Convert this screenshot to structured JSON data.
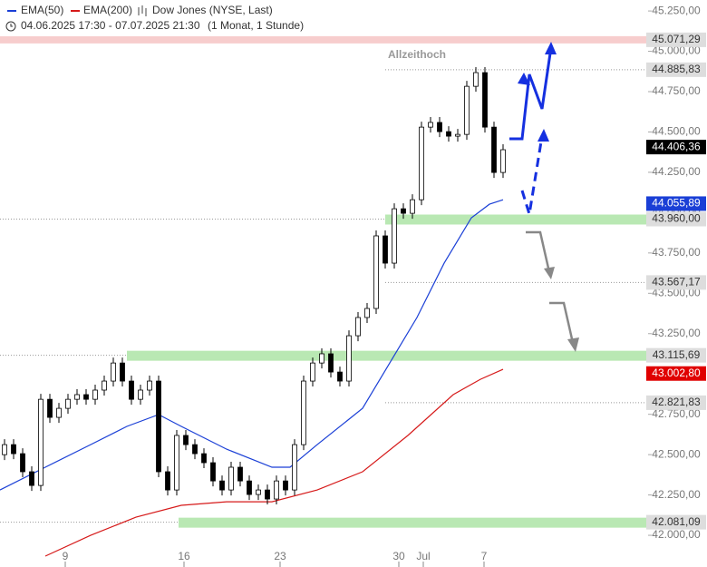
{
  "chart_data": {
    "type": "candlestick",
    "title": "Dow Jones (NYSE, Last)",
    "subtitle": "04.06.2025 17:30 - 07.07.2025 21:30",
    "period": "(1 Monat, 1 Stunde)",
    "annotation": "Allzeithoch",
    "candles": {
      "open": [
        42500,
        42562,
        42506,
        42394,
        42309,
        42843,
        42731,
        42787,
        42843,
        42872,
        42843,
        42900,
        42956,
        43068,
        42956,
        42843,
        42900,
        42956,
        42394,
        42281,
        42619,
        42562,
        42506,
        42450,
        42337,
        42281,
        42422,
        42337,
        42253,
        42281,
        42225,
        42337,
        42281,
        42562,
        42956,
        43068,
        43125,
        43012,
        42956,
        43237,
        43350,
        43406,
        43856,
        43687,
        44024,
        43996,
        44080,
        44530,
        44559,
        44502,
        44474,
        44485,
        44783,
        44868,
        44530,
        44249
      ],
      "close": [
        42562,
        42506,
        42394,
        42309,
        42843,
        42731,
        42787,
        42843,
        42872,
        42843,
        42900,
        42956,
        43068,
        42956,
        42843,
        42900,
        42956,
        42394,
        42281,
        42619,
        42562,
        42506,
        42450,
        42337,
        42281,
        42422,
        42337,
        42253,
        42281,
        42225,
        42337,
        42281,
        42562,
        42956,
        43068,
        43125,
        43012,
        42956,
        43237,
        43350,
        43406,
        43856,
        43687,
        44024,
        43996,
        44080,
        44530,
        44559,
        44502,
        44474,
        44485,
        44783,
        44868,
        44530,
        44249,
        44390
      ]
    },
    "series": [
      {
        "name": "EMA(50)",
        "color": "#1a3fd6",
        "x": [
          -0.5,
          4.5,
          9.5,
          13.5,
          17,
          19.5,
          24.5,
          29.5,
          31.5,
          34.5,
          39.5,
          42.5,
          45.5,
          48.5,
          51.5,
          53.5,
          55
        ],
        "values": [
          42281,
          42422,
          42562,
          42675,
          42748,
          42675,
          42534,
          42422,
          42422,
          42562,
          42787,
          43068,
          43350,
          43687,
          43968,
          44052,
          44080
        ]
      },
      {
        "name": "EMA(200)",
        "color": "#d61a1a",
        "x": [
          4.5,
          9.5,
          14.5,
          19.5,
          24.5,
          29.5,
          34.5,
          39.5,
          44.5,
          49.5,
          52.5,
          55
        ],
        "values": [
          41871,
          42000,
          42112,
          42186,
          42208,
          42208,
          42281,
          42394,
          42619,
          42872,
          42967,
          43029
        ]
      }
    ],
    "levels": [
      {
        "value": 45071.29,
        "label": "45.071,29",
        "kind": "resistance",
        "color": "#f4b8b8"
      },
      {
        "value": 44885.83,
        "label": "44.885,83",
        "kind": "dotted",
        "color": "#d9d9d9"
      },
      {
        "value": 44406.36,
        "label": "44.406,36",
        "kind": "marker",
        "color": "#000000"
      },
      {
        "value": 44055.89,
        "label": "44.055,89",
        "kind": "marker",
        "color": "#1a3fd6"
      },
      {
        "value": 43960.0,
        "label": "43.960,00",
        "kind": "zone",
        "color": "#b9e8b3",
        "from": 42
      },
      {
        "value": 43567.17,
        "label": "43.567,17",
        "kind": "dotted",
        "color": "#d9d9d9"
      },
      {
        "value": 43115.69,
        "label": "43.115,69",
        "kind": "zone",
        "color": "#b9e8b3",
        "from": 13.5
      },
      {
        "value": 43002.8,
        "label": "43.002,80",
        "kind": "marker",
        "color": "#e00000"
      },
      {
        "value": 42821.83,
        "label": "42.821,83",
        "kind": "dotted",
        "color": "#d9d9d9"
      },
      {
        "value": 42081.09,
        "label": "42.081,09",
        "kind": "zone",
        "color": "#b9e8b3",
        "from": 19.2
      }
    ],
    "ylim": [
      41916,
      45318
    ],
    "yticks": [
      {
        "value": 42000,
        "label": "42.000,00"
      },
      {
        "value": 42250,
        "label": "42.250,00"
      },
      {
        "value": 42500,
        "label": "42.500,00"
      },
      {
        "value": 42750,
        "label": "42.750,00"
      },
      {
        "value": 43000,
        "label": "43.000,00"
      },
      {
        "value": 43250,
        "label": "43.250,00"
      },
      {
        "value": 43500,
        "label": "43.500,00"
      },
      {
        "value": 43750,
        "label": "43.750,00"
      },
      {
        "value": 44000,
        "label": "44.000,00"
      },
      {
        "value": 44250,
        "label": "44.250,00"
      },
      {
        "value": 44500,
        "label": "44.500,00"
      },
      {
        "value": 44750,
        "label": "44.750,00"
      },
      {
        "value": 45000,
        "label": "45.000,00"
      },
      {
        "value": 45250,
        "label": "45.250,00"
      }
    ],
    "xlim": [
      -0.5,
      71
    ],
    "xticks": [
      {
        "value": 6.7,
        "label": "9"
      },
      {
        "value": 19.8,
        "label": "16"
      },
      {
        "value": 30.4,
        "label": "23"
      },
      {
        "value": 43.5,
        "label": "30"
      },
      {
        "value": 46.2,
        "label": "Jul"
      },
      {
        "value": 52.9,
        "label": "7"
      }
    ]
  }
}
